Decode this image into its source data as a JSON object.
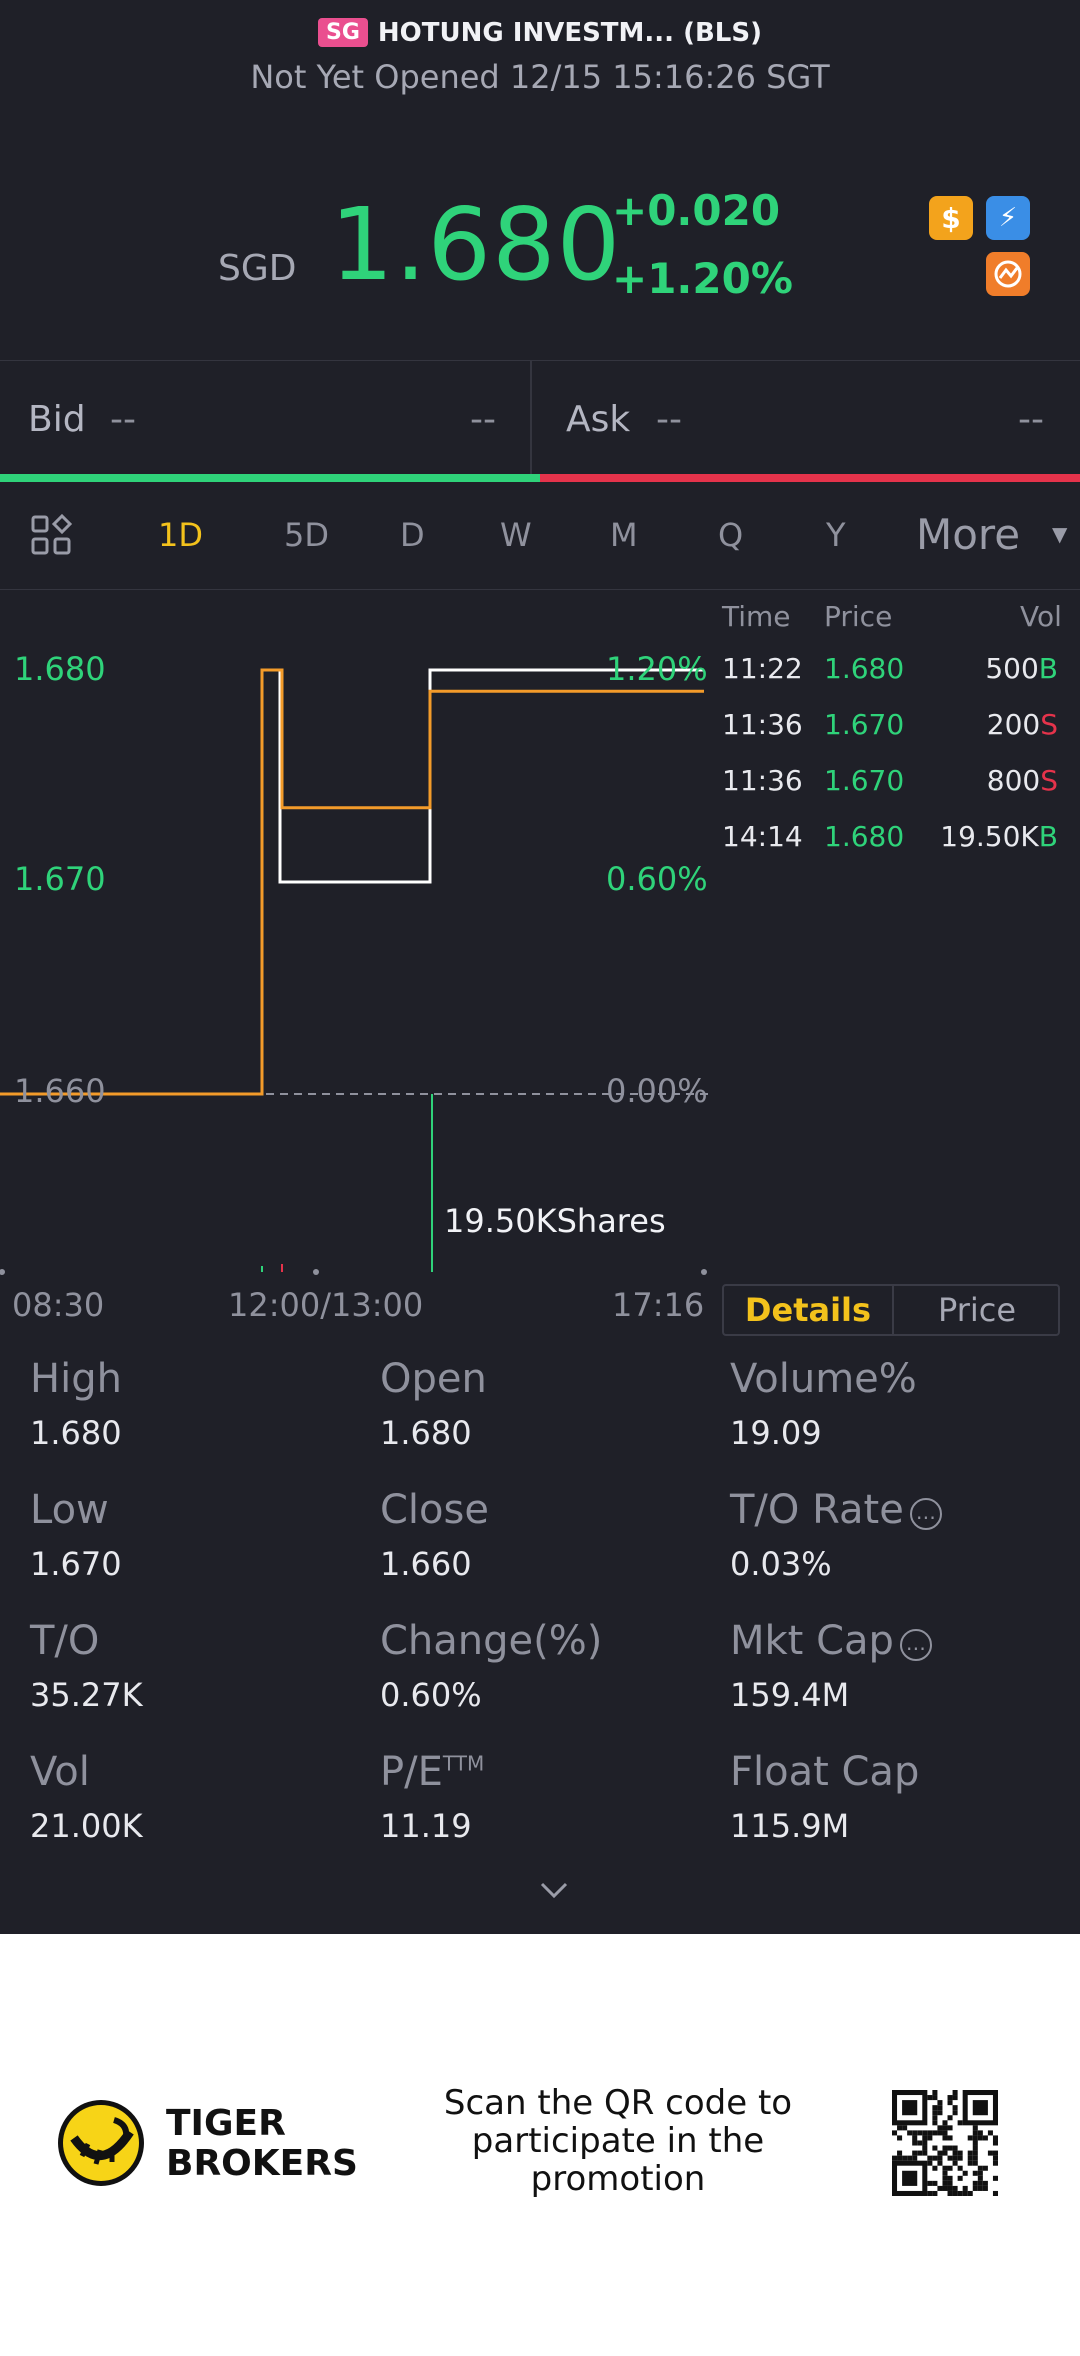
{
  "header": {
    "market_badge": "SG",
    "title": "HOTUNG INVESTM... (BLS)",
    "status": "Not Yet Opened 12/15 15:16:26 SGT",
    "currency": "SGD",
    "price": "1.680",
    "change": "+0.020",
    "change_pct": "+1.20%",
    "icon_dollar": "$",
    "icon_flash": "⚡",
    "icons": [
      "dollar-icon",
      "flash-icon",
      "chart-badge-icon"
    ]
  },
  "bidask": {
    "bid_label": "Bid",
    "bid_price": "--",
    "bid_size": "--",
    "ask_label": "Ask",
    "ask_price": "--",
    "ask_size": "--"
  },
  "tabs": {
    "items": [
      "1D",
      "5D",
      "D",
      "W",
      "M",
      "Q",
      "Y"
    ],
    "active": "1D",
    "more": "More"
  },
  "chart": {
    "y_labels": [
      "1.680",
      "1.670",
      "1.660"
    ],
    "pct_labels": [
      "1.20%",
      "0.60%",
      "0.00%"
    ],
    "x_labels": [
      "08:30",
      "12:00/13:00",
      "17:16"
    ],
    "volume_label": "19.50KShares",
    "colors": {
      "price": "#ffffff",
      "avg": "#f39b2a",
      "volume": "#2fd37a"
    }
  },
  "chart_data": {
    "type": "line",
    "x": [
      "08:30",
      "11:22",
      "11:36",
      "14:14",
      "17:16"
    ],
    "series": [
      {
        "values": [
          1.66,
          1.68,
          1.67,
          1.68,
          1.68
        ]
      },
      {
        "values": [
          1.66,
          1.68,
          1.6735,
          1.679,
          1.679
        ]
      }
    ],
    "ylim": [
      1.66,
      1.68
    ],
    "grid": false
  },
  "ticks": {
    "headers": {
      "time": "Time",
      "price": "Price",
      "vol": "Vol"
    },
    "rows": [
      {
        "time": "11:22",
        "price": "1.680",
        "vol": "500",
        "side": "B"
      },
      {
        "time": "11:36",
        "price": "1.670",
        "vol": "200",
        "side": "S"
      },
      {
        "time": "11:36",
        "price": "1.670",
        "vol": "800",
        "side": "S"
      },
      {
        "time": "14:14",
        "price": "1.680",
        "vol": "19.50K",
        "side": "B"
      }
    ]
  },
  "toggle": {
    "details": "Details",
    "price": "Price"
  },
  "stats": [
    {
      "label": "High",
      "value": "1.680"
    },
    {
      "label": "Open",
      "value": "1.680"
    },
    {
      "label": "Volume%",
      "value": "19.09"
    },
    {
      "label": "Low",
      "value": "1.670"
    },
    {
      "label": "Close",
      "value": "1.660"
    },
    {
      "label": "T/O Rate",
      "value": "0.03%",
      "info": true
    },
    {
      "label": "T/O",
      "value": "35.27K"
    },
    {
      "label": "Change(%)",
      "value": "0.60%"
    },
    {
      "label": "Mkt Cap",
      "value": "159.4M",
      "info": true
    },
    {
      "label": "Vol",
      "value": "21.00K"
    },
    {
      "label": "P/E",
      "sup": "TTM",
      "value": "11.19"
    },
    {
      "label": "Float Cap",
      "value": "115.9M"
    }
  ],
  "footer": {
    "brand_line1": "TIGER",
    "brand_line2": "BROKERS",
    "promo": "Scan the QR code to participate in the promotion"
  }
}
